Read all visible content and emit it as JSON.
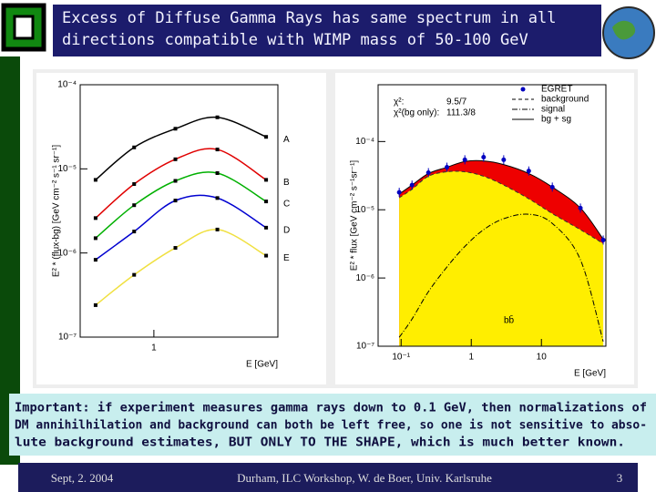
{
  "header": {
    "title_lines": [
      "Excess of Diffuse Gamma Rays has same spectrum in all",
      "directions  compatible with WIMP mass of 50-100 GeV"
    ]
  },
  "left_plot": {
    "y_axis_label": "E² * (flux-bg) [GeV cm⁻² s⁻¹ sr⁻¹]",
    "x_axis_label": "E [GeV]",
    "xlim": [
      0.2,
      15
    ],
    "ylim": [
      1e-07,
      0.0001
    ],
    "log_x": true,
    "log_y": true,
    "xticks": [
      1
    ],
    "yticks": [
      {
        "value": 0.0001,
        "label": "10⁻⁴"
      },
      {
        "value": 1e-05,
        "label": "10⁻⁵"
      },
      {
        "value": 1e-06,
        "label": "10⁻⁶"
      },
      {
        "value": 1e-07,
        "label": "10⁻⁷"
      }
    ],
    "x": [
      0.28,
      0.65,
      1.6,
      4,
      11.6
    ],
    "series": [
      {
        "name": "A",
        "color": "#000000",
        "values": [
          7.4e-06,
          1.8e-05,
          3e-05,
          4.1e-05,
          2.4e-05
        ]
      },
      {
        "name": "B",
        "color": "#e00000",
        "values": [
          2.6e-06,
          6.6e-06,
          1.3e-05,
          1.7e-05,
          7.4e-06
        ]
      },
      {
        "name": "C",
        "color": "#00b000",
        "values": [
          1.5e-06,
          3.7e-06,
          7.2e-06,
          8.9e-06,
          4.1e-06
        ]
      },
      {
        "name": "D",
        "color": "#0000d0",
        "values": [
          8.3e-07,
          1.8e-06,
          4.2e-06,
          4.5e-06,
          2e-06
        ]
      },
      {
        "name": "E",
        "color": "#f0e040",
        "values": [
          2.4e-07,
          5.5e-07,
          1.15e-06,
          1.9e-06,
          9.3e-07
        ]
      }
    ]
  },
  "right_plot": {
    "y_axis_label": "E² * flux [GeV cm⁻² s⁻¹sr⁻¹]",
    "x_axis_label": "E [GeV]",
    "xlim": [
      0.047,
      83
    ],
    "ylim": [
      1e-07,
      0.00068
    ],
    "log_x": true,
    "log_y": true,
    "xticks": [
      {
        "value": 0.1,
        "label": "10⁻¹"
      },
      1,
      10
    ],
    "yticks": [
      {
        "value": 0.0001,
        "label": "10⁻⁴"
      },
      {
        "value": 1e-05,
        "label": "10⁻⁵"
      },
      {
        "value": 1e-06,
        "label": "10⁻⁶"
      },
      {
        "value": 1e-07,
        "label": "10⁻⁷"
      }
    ],
    "x": [
      0.094,
      0.143,
      0.245,
      0.45,
      0.81,
      1.5,
      2.9,
      6.6,
      14.3,
      36,
      76
    ],
    "series": [
      {
        "name": "EGRET",
        "color": "#0000c0",
        "values": [
          1.8e-05,
          2.3e-05,
          3.5e-05,
          4.2e-05,
          5.4e-05,
          5.9e-05,
          5.4e-05,
          3.7e-05,
          2.15e-05,
          1.06e-05,
          3.6e-06
        ]
      },
      {
        "name": "background",
        "color": "#ffee00",
        "values": [
          1.5e-05,
          2e-05,
          3.1e-05,
          3.6e-05,
          3.6e-05,
          3.1e-05,
          2.3e-05,
          1.45e-05,
          8.8e-06,
          5.1e-06,
          3.2e-06
        ]
      },
      {
        "name": "signal",
        "color": "#000000",
        "values": [
          1.35e-07,
          2.5e-07,
          6.3e-07,
          1.45e-06,
          2.9e-06,
          5.1e-06,
          7.4e-06,
          8.6e-06,
          6.3e-06,
          1.85e-06,
          1.17e-07
        ]
      },
      {
        "name": "bg + sg",
        "color": "#ee0000",
        "values": [
          1.7e-05,
          2.3e-05,
          3.4e-05,
          4.2e-05,
          5.1e-05,
          5.2e-05,
          4.6e-05,
          3.4e-05,
          2.15e-05,
          1.06e-05,
          3.7e-06
        ]
      }
    ],
    "fit_labels": [
      {
        "label": "χ²:",
        "value": "9.5/7"
      },
      {
        "label": "χ²(bg only):",
        "value": "111.3/8"
      }
    ],
    "annotation": "bb̄"
  },
  "body": {
    "lines": [
      "Important: if experiment measures gamma rays down to 0.1 GeV, then normalizations of",
      "DM annihilhilation and background can both be left free, so one is not sensitive to abso-",
      "lute background estimates, BUT ONLY TO THE SHAPE, which is much better known."
    ]
  },
  "footer": {
    "date": "Sept, 2. 2004",
    "venue": "Durham, ILC Workshop, W. de Boer,  Univ. Karlsruhe",
    "page": "3"
  }
}
